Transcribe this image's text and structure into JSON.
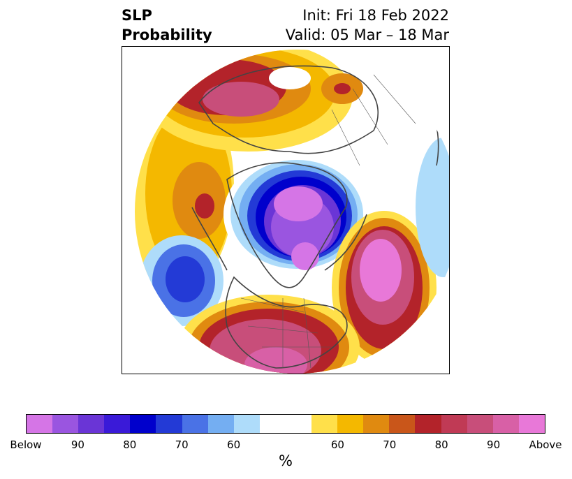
{
  "title": {
    "left_line1": "SLP",
    "left_line2": "Probability",
    "right_line1": "Init: Fri 18 Feb 2022",
    "right_line2": "Valid: 05 Mar – 18 Mar"
  },
  "colorbar": {
    "label": "%",
    "colors": [
      "#d575e6",
      "#9a55e0",
      "#6a35d6",
      "#3a1ad8",
      "#0000cc",
      "#233ad6",
      "#4a72e6",
      "#74aef2",
      "#aedcfa",
      "#ffffff",
      "#ffffff",
      "#ffe04a",
      "#f4b800",
      "#e08a10",
      "#c9561a",
      "#b3232a",
      "#c03a55",
      "#c84e7a",
      "#d860a6",
      "#e878d8"
    ],
    "ticks": [
      "Below",
      "90",
      "80",
      "70",
      "60",
      "",
      "60",
      "70",
      "80",
      "90",
      "Above"
    ]
  },
  "map": {
    "projection": "polar stereographic (north pole)",
    "variable": "sea level pressure tercile probability"
  }
}
